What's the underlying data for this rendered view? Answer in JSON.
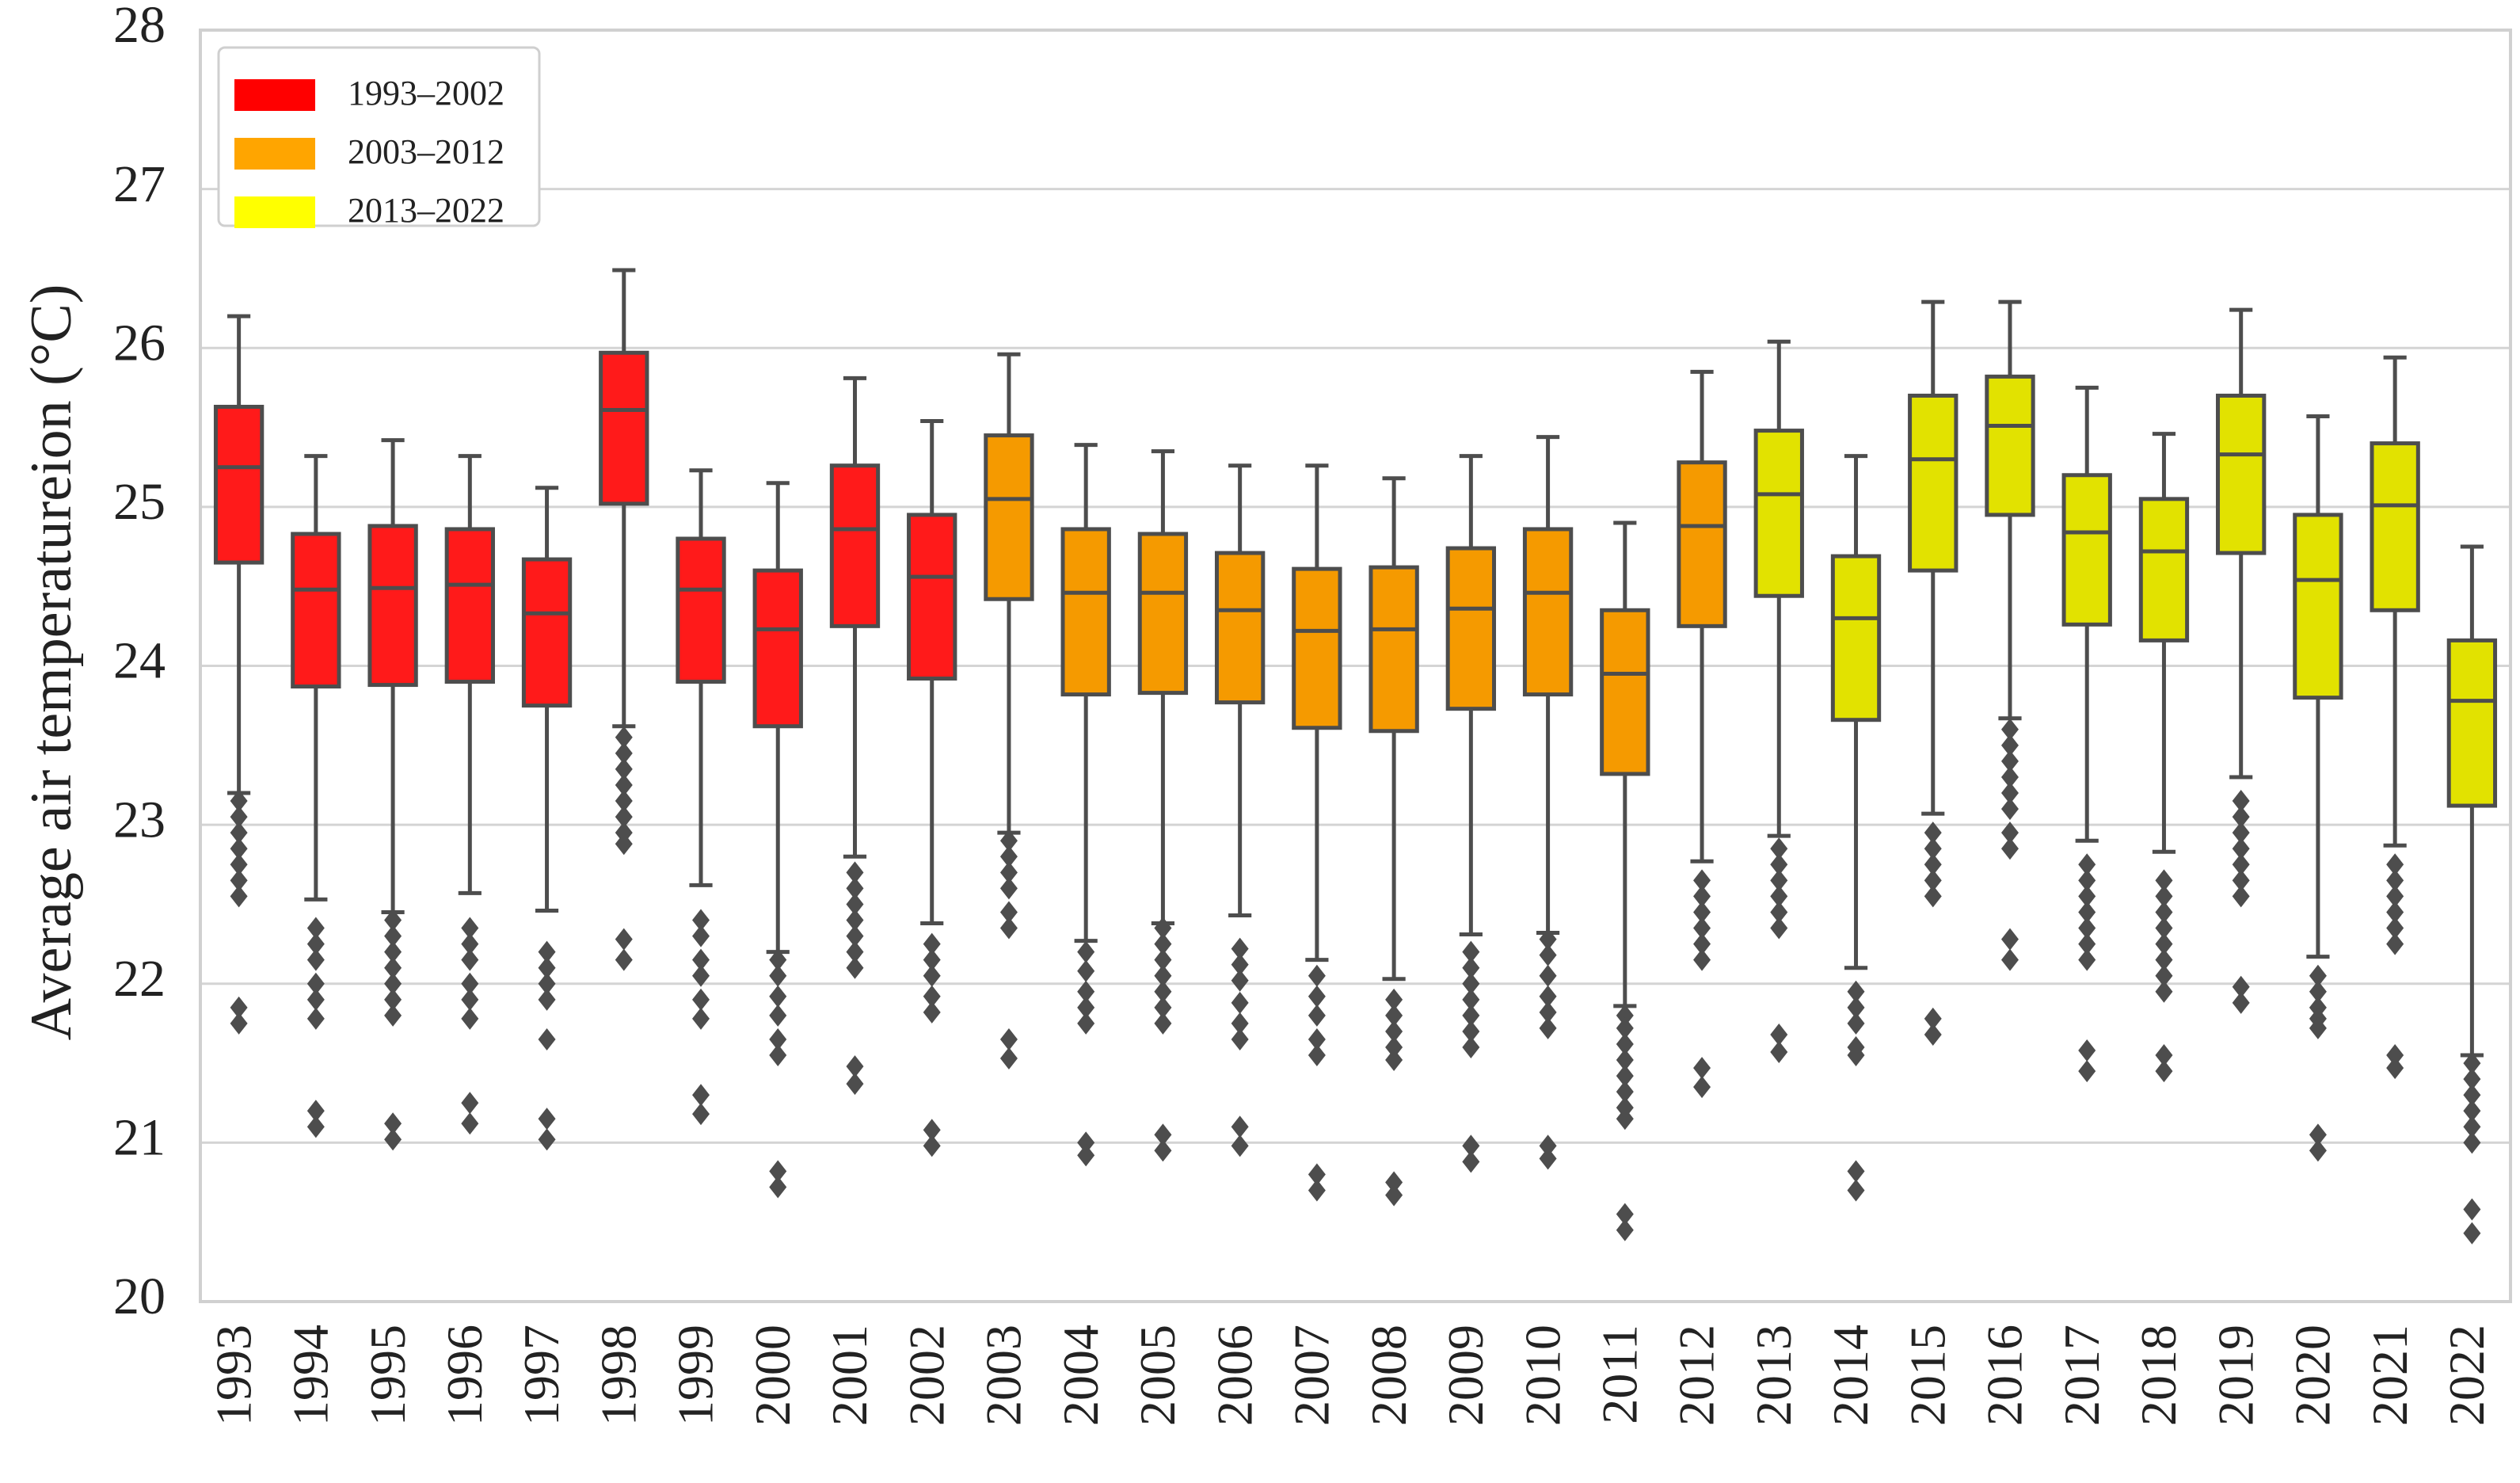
{
  "chart_data": {
    "type": "boxplot",
    "title": "",
    "xlabel": "",
    "ylabel": "Average air temperatureion (°C)",
    "ylim": [
      20,
      28
    ],
    "yticks": [
      20,
      21,
      22,
      23,
      24,
      25,
      26,
      27,
      28
    ],
    "grid": "horizontal",
    "legend_position": "top-left",
    "legend": [
      {
        "label": "1993–2002",
        "color": "#FF0000"
      },
      {
        "label": "2003–2012",
        "color": "#FFA500"
      },
      {
        "label": "2013–2022",
        "color": "#FFFF00"
      }
    ],
    "categories": [
      "1993",
      "1994",
      "1995",
      "1996",
      "1997",
      "1998",
      "1999",
      "2000",
      "2001",
      "2002",
      "2003",
      "2004",
      "2005",
      "2006",
      "2007",
      "2008",
      "2009",
      "2010",
      "2011",
      "2012",
      "2013",
      "2014",
      "2015",
      "2016",
      "2017",
      "2018",
      "2019",
      "2020",
      "2021",
      "2022"
    ],
    "boxes": [
      {
        "group": 0,
        "whisker_low": 23.2,
        "q1": 24.65,
        "median": 25.25,
        "q3": 25.63,
        "whisker_high": 26.2,
        "outliers": [
          23.15,
          23.05,
          22.95,
          22.85,
          22.75,
          22.65,
          22.55,
          21.85,
          21.75
        ]
      },
      {
        "group": 0,
        "whisker_low": 22.53,
        "q1": 23.87,
        "median": 24.48,
        "q3": 24.83,
        "whisker_high": 25.32,
        "outliers": [
          22.35,
          22.25,
          22.15,
          22.0,
          21.9,
          21.78,
          21.2,
          21.1
        ]
      },
      {
        "group": 0,
        "whisker_low": 22.45,
        "q1": 23.88,
        "median": 24.49,
        "q3": 24.88,
        "whisker_high": 25.42,
        "outliers": [
          22.4,
          22.3,
          22.2,
          22.1,
          22.0,
          21.9,
          21.8,
          21.12,
          21.02
        ]
      },
      {
        "group": 0,
        "whisker_low": 22.57,
        "q1": 23.9,
        "median": 24.51,
        "q3": 24.86,
        "whisker_high": 25.32,
        "outliers": [
          22.35,
          22.25,
          22.15,
          22.0,
          21.9,
          21.78,
          21.25,
          21.12
        ]
      },
      {
        "group": 0,
        "whisker_low": 22.46,
        "q1": 23.75,
        "median": 24.33,
        "q3": 24.67,
        "whisker_high": 25.12,
        "outliers": [
          22.2,
          22.1,
          22.0,
          21.9,
          21.65,
          21.15,
          21.02
        ]
      },
      {
        "group": 0,
        "whisker_low": 23.62,
        "q1": 25.02,
        "median": 25.61,
        "q3": 25.97,
        "whisker_high": 26.49,
        "outliers": [
          23.55,
          23.45,
          23.35,
          23.25,
          23.15,
          23.05,
          22.95,
          22.88,
          22.28,
          22.15
        ]
      },
      {
        "group": 0,
        "whisker_low": 22.62,
        "q1": 23.9,
        "median": 24.48,
        "q3": 24.8,
        "whisker_high": 25.23,
        "outliers": [
          22.4,
          22.3,
          22.15,
          22.05,
          21.9,
          21.78,
          21.3,
          21.18
        ]
      },
      {
        "group": 0,
        "whisker_low": 22.2,
        "q1": 23.62,
        "median": 24.23,
        "q3": 24.6,
        "whisker_high": 25.15,
        "outliers": [
          22.15,
          22.05,
          21.92,
          21.8,
          21.65,
          21.55,
          20.82,
          20.72
        ]
      },
      {
        "group": 0,
        "whisker_low": 22.8,
        "q1": 24.25,
        "median": 24.86,
        "q3": 25.26,
        "whisker_high": 25.81,
        "outliers": [
          22.7,
          22.6,
          22.5,
          22.4,
          22.3,
          22.2,
          22.1,
          21.48,
          21.37
        ]
      },
      {
        "group": 0,
        "whisker_low": 22.38,
        "q1": 23.92,
        "median": 24.56,
        "q3": 24.95,
        "whisker_high": 25.54,
        "outliers": [
          22.25,
          22.15,
          22.05,
          21.92,
          21.82,
          21.08,
          20.98
        ]
      },
      {
        "group": 1,
        "whisker_low": 22.95,
        "q1": 24.42,
        "median": 25.05,
        "q3": 25.45,
        "whisker_high": 25.96,
        "outliers": [
          22.9,
          22.8,
          22.7,
          22.6,
          22.45,
          22.35,
          21.65,
          21.53
        ]
      },
      {
        "group": 1,
        "whisker_low": 22.27,
        "q1": 23.82,
        "median": 24.46,
        "q3": 24.86,
        "whisker_high": 25.39,
        "outliers": [
          22.2,
          22.08,
          21.95,
          21.85,
          21.75,
          21.0,
          20.92
        ]
      },
      {
        "group": 1,
        "whisker_low": 22.38,
        "q1": 23.83,
        "median": 24.46,
        "q3": 24.83,
        "whisker_high": 25.35,
        "outliers": [
          22.35,
          22.25,
          22.15,
          22.05,
          21.95,
          21.85,
          21.75,
          21.05,
          20.95
        ]
      },
      {
        "group": 1,
        "whisker_low": 22.43,
        "q1": 23.77,
        "median": 24.35,
        "q3": 24.71,
        "whisker_high": 25.26,
        "outliers": [
          22.22,
          22.12,
          22.02,
          21.88,
          21.75,
          21.65,
          21.1,
          20.98
        ]
      },
      {
        "group": 1,
        "whisker_low": 22.15,
        "q1": 23.61,
        "median": 24.22,
        "q3": 24.61,
        "whisker_high": 25.26,
        "outliers": [
          22.05,
          21.92,
          21.8,
          21.65,
          21.55,
          20.8,
          20.7
        ]
      },
      {
        "group": 1,
        "whisker_low": 22.03,
        "q1": 23.59,
        "median": 24.23,
        "q3": 24.62,
        "whisker_high": 25.18,
        "outliers": [
          21.9,
          21.8,
          21.7,
          21.6,
          21.52,
          20.75,
          20.67
        ]
      },
      {
        "group": 1,
        "whisker_low": 22.31,
        "q1": 23.73,
        "median": 24.36,
        "q3": 24.74,
        "whisker_high": 25.32,
        "outliers": [
          22.2,
          22.1,
          22.0,
          21.9,
          21.8,
          21.7,
          21.6,
          20.98,
          20.88
        ]
      },
      {
        "group": 1,
        "whisker_low": 22.32,
        "q1": 23.82,
        "median": 24.46,
        "q3": 24.86,
        "whisker_high": 25.44,
        "outliers": [
          22.28,
          22.18,
          22.05,
          21.92,
          21.82,
          21.72,
          20.98,
          20.9
        ]
      },
      {
        "group": 1,
        "whisker_low": 21.86,
        "q1": 23.32,
        "median": 23.95,
        "q3": 24.35,
        "whisker_high": 24.9,
        "outliers": [
          21.8,
          21.72,
          21.62,
          21.52,
          21.42,
          21.32,
          21.22,
          21.15,
          20.55,
          20.45
        ]
      },
      {
        "group": 1,
        "whisker_low": 22.77,
        "q1": 24.25,
        "median": 24.88,
        "q3": 25.28,
        "whisker_high": 25.85,
        "outliers": [
          22.65,
          22.55,
          22.45,
          22.35,
          22.25,
          22.15,
          21.47,
          21.35
        ]
      },
      {
        "group": 2,
        "whisker_low": 22.93,
        "q1": 24.44,
        "median": 25.08,
        "q3": 25.48,
        "whisker_high": 26.04,
        "outliers": [
          22.85,
          22.75,
          22.65,
          22.55,
          22.45,
          22.35,
          21.68,
          21.57
        ]
      },
      {
        "group": 2,
        "whisker_low": 22.1,
        "q1": 23.66,
        "median": 24.3,
        "q3": 24.69,
        "whisker_high": 25.32,
        "outliers": [
          21.95,
          21.85,
          21.75,
          21.6,
          21.55,
          20.82,
          20.7
        ]
      },
      {
        "group": 2,
        "whisker_low": 23.07,
        "q1": 24.6,
        "median": 25.3,
        "q3": 25.7,
        "whisker_high": 26.29,
        "outliers": [
          22.95,
          22.85,
          22.75,
          22.65,
          22.55,
          21.78,
          21.68
        ]
      },
      {
        "group": 2,
        "whisker_low": 23.67,
        "q1": 24.95,
        "median": 25.51,
        "q3": 25.82,
        "whisker_high": 26.29,
        "outliers": [
          23.6,
          23.5,
          23.4,
          23.3,
          23.2,
          23.1,
          22.95,
          22.85,
          22.28,
          22.15
        ]
      },
      {
        "group": 2,
        "whisker_low": 22.9,
        "q1": 24.26,
        "median": 24.84,
        "q3": 25.2,
        "whisker_high": 25.75,
        "outliers": [
          22.75,
          22.65,
          22.55,
          22.45,
          22.35,
          22.25,
          22.15,
          21.58,
          21.45
        ]
      },
      {
        "group": 2,
        "whisker_low": 22.83,
        "q1": 24.16,
        "median": 24.72,
        "q3": 25.05,
        "whisker_high": 25.46,
        "outliers": [
          22.65,
          22.55,
          22.45,
          22.35,
          22.25,
          22.15,
          22.05,
          21.95,
          21.55,
          21.45
        ]
      },
      {
        "group": 2,
        "whisker_low": 23.3,
        "q1": 24.71,
        "median": 25.33,
        "q3": 25.7,
        "whisker_high": 26.24,
        "outliers": [
          23.15,
          23.05,
          22.95,
          22.85,
          22.75,
          22.65,
          22.55,
          21.98,
          21.88
        ]
      },
      {
        "group": 2,
        "whisker_low": 22.17,
        "q1": 23.8,
        "median": 24.54,
        "q3": 24.95,
        "whisker_high": 25.57,
        "outliers": [
          22.05,
          21.95,
          21.85,
          21.78,
          21.72,
          21.05,
          20.95
        ]
      },
      {
        "group": 2,
        "whisker_low": 22.87,
        "q1": 24.35,
        "median": 25.01,
        "q3": 25.4,
        "whisker_high": 25.94,
        "outliers": [
          22.75,
          22.65,
          22.55,
          22.45,
          22.35,
          22.25,
          21.55,
          21.47
        ]
      },
      {
        "group": 2,
        "whisker_low": 21.55,
        "q1": 23.12,
        "median": 23.78,
        "q3": 24.16,
        "whisker_high": 24.75,
        "outliers": [
          21.5,
          21.4,
          21.3,
          21.2,
          21.1,
          21.0,
          20.58,
          20.43
        ]
      }
    ],
    "box_fill_colors": [
      "#FF1A1A",
      "#F59A00",
      "#E2E200"
    ],
    "line_color": "#4D4D4D",
    "grid_color": "#D4D4D4",
    "frame_color": "#D0D0D0"
  }
}
